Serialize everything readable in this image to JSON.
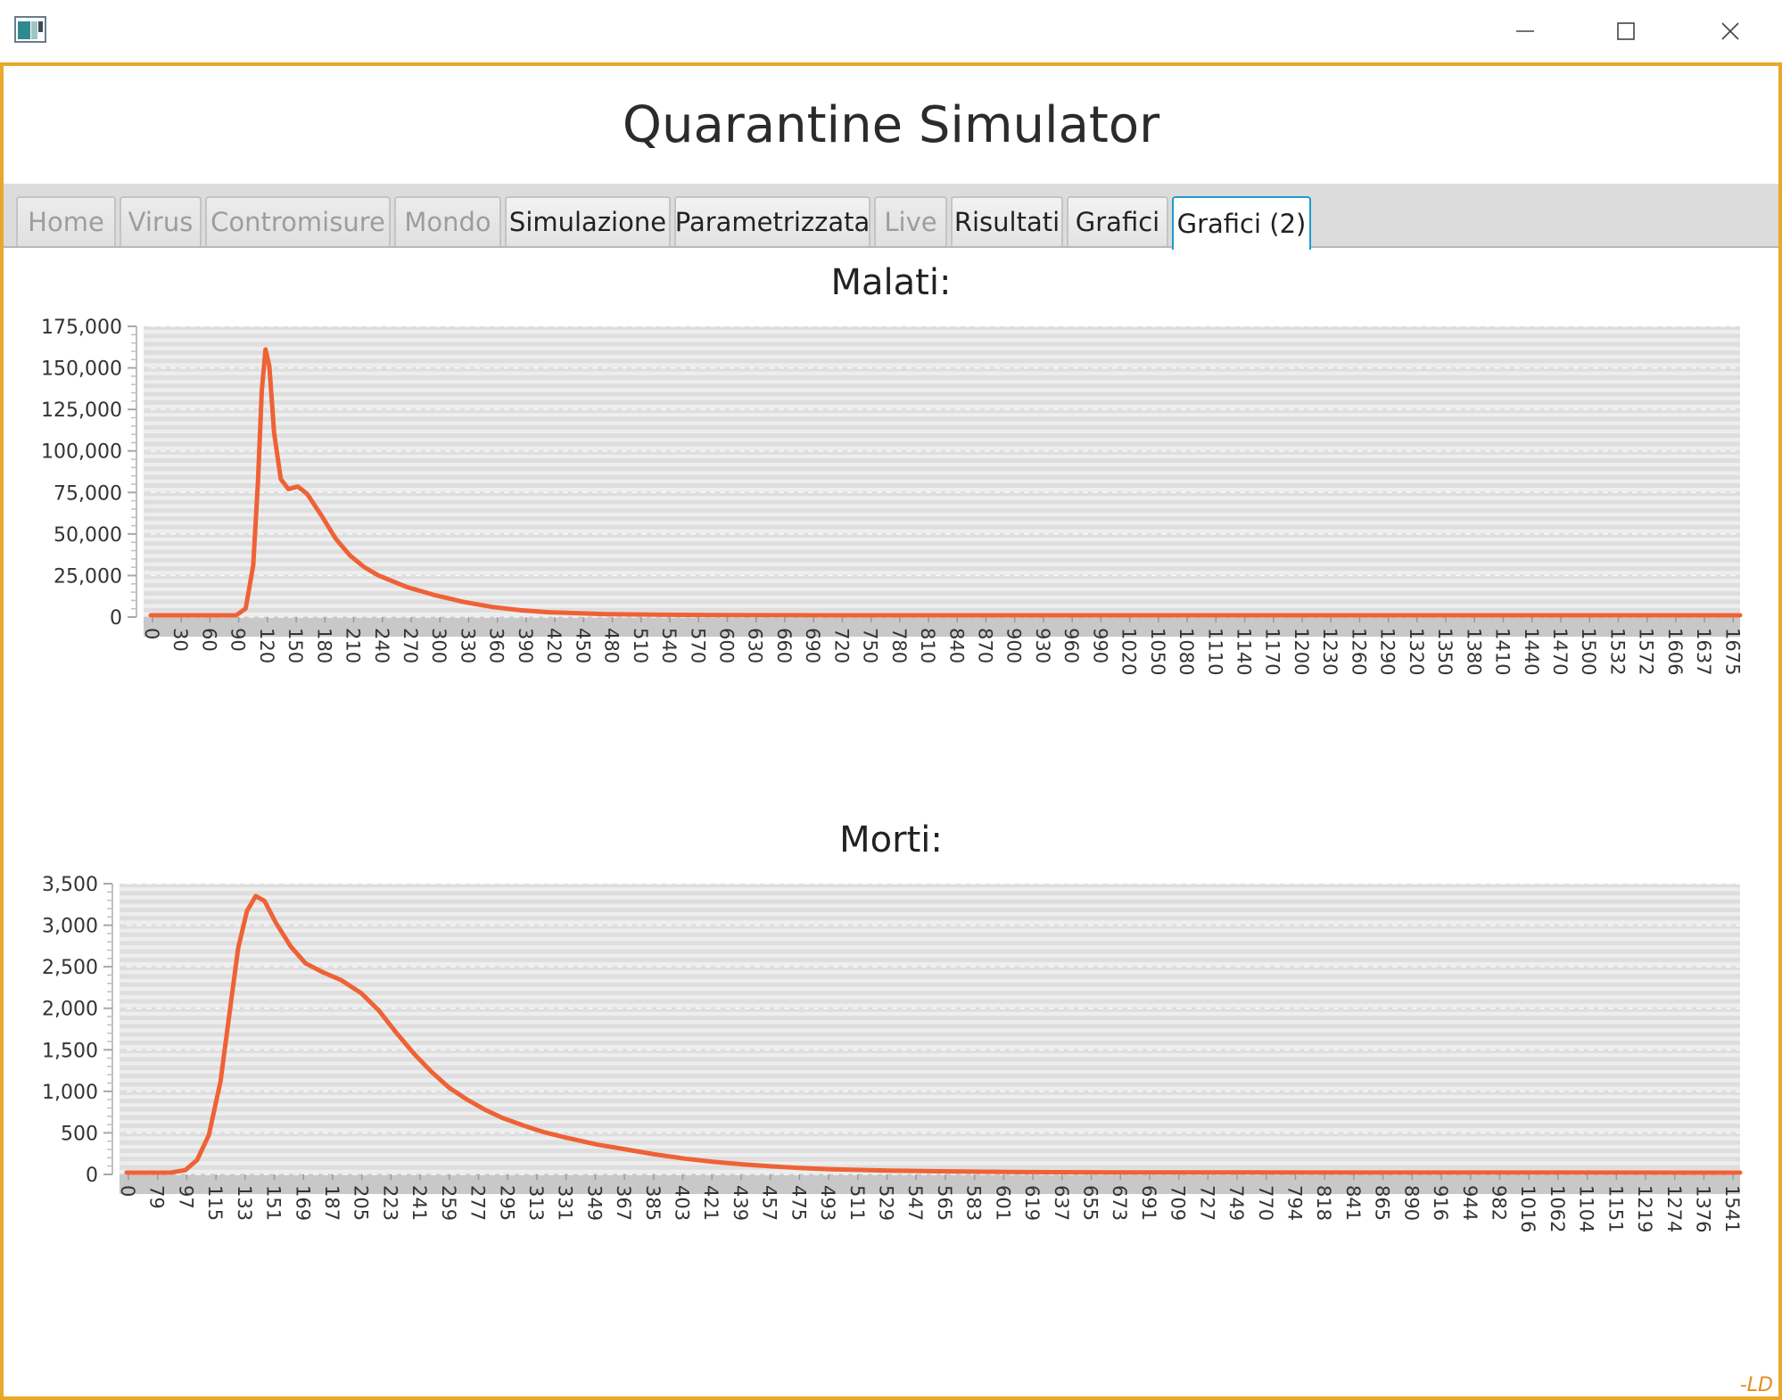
{
  "window": {
    "icon": "app-window-icon",
    "controls": [
      "minimize-icon",
      "maximize-icon",
      "close-icon"
    ]
  },
  "app": {
    "title": "Quarantine Simulator"
  },
  "tabs": [
    {
      "label": "Home",
      "state": "disabled"
    },
    {
      "label": "Virus",
      "state": "disabled"
    },
    {
      "label": "Contromisure",
      "state": "disabled"
    },
    {
      "label": "Mondo",
      "state": "disabled"
    },
    {
      "label": "Simulazione",
      "state": "enabled"
    },
    {
      "label": "Parametrizzata",
      "state": "enabled"
    },
    {
      "label": "Live",
      "state": "disabled"
    },
    {
      "label": "Risultati",
      "state": "enabled"
    },
    {
      "label": "Grafici",
      "state": "enabled"
    },
    {
      "label": "Grafici (2)",
      "state": "active"
    }
  ],
  "colors": {
    "accent_frame": "#e8a92a",
    "series": "#ee6236",
    "active_tab": "#1e9bd0"
  },
  "chart_data": [
    {
      "type": "line",
      "title": "Malati:",
      "ylim": [
        0,
        175000
      ],
      "y_ticks": [
        "0",
        "25,000",
        "50,000",
        "75,000",
        "100,000",
        "125,000",
        "150,000",
        "175,000"
      ],
      "y_tick_values": [
        0,
        25000,
        50000,
        75000,
        100000,
        125000,
        150000,
        175000
      ],
      "x_tick_labels": [
        "0",
        "30",
        "60",
        "90",
        "120",
        "150",
        "180",
        "210",
        "240",
        "270",
        "300",
        "330",
        "360",
        "390",
        "420",
        "450",
        "480",
        "510",
        "540",
        "570",
        "600",
        "630",
        "660",
        "690",
        "720",
        "750",
        "780",
        "810",
        "840",
        "870",
        "900",
        "930",
        "960",
        "990",
        "1020",
        "1050",
        "1080",
        "1110",
        "1140",
        "1170",
        "1200",
        "1230",
        "1260",
        "1290",
        "1320",
        "1350",
        "1380",
        "1410",
        "1440",
        "1470",
        "1500",
        "1532",
        "1572",
        "1606",
        "1637",
        "1675"
      ],
      "series": [
        {
          "values": [
            {
              "x": 0,
              "y": 0
            },
            {
              "x": 60,
              "y": 0
            },
            {
              "x": 90,
              "y": 0
            },
            {
              "x": 100,
              "y": 4000
            },
            {
              "x": 108,
              "y": 30000
            },
            {
              "x": 113,
              "y": 80000
            },
            {
              "x": 117,
              "y": 135000
            },
            {
              "x": 121,
              "y": 160000
            },
            {
              "x": 125,
              "y": 150000
            },
            {
              "x": 130,
              "y": 110000
            },
            {
              "x": 137,
              "y": 82000
            },
            {
              "x": 145,
              "y": 76000
            },
            {
              "x": 155,
              "y": 77500
            },
            {
              "x": 165,
              "y": 73000
            },
            {
              "x": 180,
              "y": 60000
            },
            {
              "x": 195,
              "y": 46000
            },
            {
              "x": 210,
              "y": 36000
            },
            {
              "x": 225,
              "y": 29000
            },
            {
              "x": 240,
              "y": 24000
            },
            {
              "x": 270,
              "y": 17000
            },
            {
              "x": 300,
              "y": 12000
            },
            {
              "x": 330,
              "y": 8000
            },
            {
              "x": 360,
              "y": 5000
            },
            {
              "x": 390,
              "y": 3000
            },
            {
              "x": 420,
              "y": 1800
            },
            {
              "x": 480,
              "y": 700
            },
            {
              "x": 540,
              "y": 300
            },
            {
              "x": 600,
              "y": 100
            },
            {
              "x": 720,
              "y": 0
            },
            {
              "x": 1675,
              "y": 0
            }
          ]
        }
      ]
    },
    {
      "type": "line",
      "title": "Morti:",
      "ylim": [
        0,
        3500
      ],
      "y_ticks": [
        "0",
        "500",
        "1,000",
        "1,500",
        "2,000",
        "2,500",
        "3,000",
        "3,500"
      ],
      "y_tick_values": [
        0,
        500,
        1000,
        1500,
        2000,
        2500,
        3000,
        3500
      ],
      "x_tick_labels": [
        "0",
        "79",
        "97",
        "115",
        "133",
        "151",
        "169",
        "187",
        "205",
        "223",
        "241",
        "259",
        "277",
        "295",
        "313",
        "331",
        "349",
        "367",
        "385",
        "403",
        "421",
        "439",
        "457",
        "475",
        "493",
        "511",
        "529",
        "547",
        "565",
        "583",
        "601",
        "619",
        "637",
        "655",
        "673",
        "691",
        "709",
        "727",
        "749",
        "770",
        "794",
        "818",
        "841",
        "865",
        "890",
        "916",
        "944",
        "982",
        "1016",
        "1062",
        "1104",
        "1151",
        "1219",
        "1274",
        "1376",
        "1541"
      ],
      "series": [
        {
          "values": [
            {
              "x": 0,
              "y": 0
            },
            {
              "x": 1.5,
              "y": 0
            },
            {
              "x": 2,
              "y": 30
            },
            {
              "x": 2.4,
              "y": 150
            },
            {
              "x": 2.8,
              "y": 450
            },
            {
              "x": 3.2,
              "y": 1100
            },
            {
              "x": 3.5,
              "y": 1900
            },
            {
              "x": 3.8,
              "y": 2700
            },
            {
              "x": 4.1,
              "y": 3150
            },
            {
              "x": 4.4,
              "y": 3330
            },
            {
              "x": 4.7,
              "y": 3270
            },
            {
              "x": 5.1,
              "y": 3000
            },
            {
              "x": 5.6,
              "y": 2720
            },
            {
              "x": 6.1,
              "y": 2520
            },
            {
              "x": 6.7,
              "y": 2410
            },
            {
              "x": 7.3,
              "y": 2320
            },
            {
              "x": 8,
              "y": 2160
            },
            {
              "x": 8.6,
              "y": 1950
            },
            {
              "x": 9.2,
              "y": 1680
            },
            {
              "x": 9.8,
              "y": 1430
            },
            {
              "x": 10.4,
              "y": 1210
            },
            {
              "x": 11,
              "y": 1020
            },
            {
              "x": 11.6,
              "y": 880
            },
            {
              "x": 12.2,
              "y": 760
            },
            {
              "x": 12.8,
              "y": 660
            },
            {
              "x": 13.5,
              "y": 570
            },
            {
              "x": 14.2,
              "y": 490
            },
            {
              "x": 15,
              "y": 420
            },
            {
              "x": 16,
              "y": 340
            },
            {
              "x": 17,
              "y": 280
            },
            {
              "x": 18,
              "y": 220
            },
            {
              "x": 19,
              "y": 170
            },
            {
              "x": 20,
              "y": 130
            },
            {
              "x": 21,
              "y": 100
            },
            {
              "x": 22,
              "y": 75
            },
            {
              "x": 23,
              "y": 55
            },
            {
              "x": 24,
              "y": 40
            },
            {
              "x": 26,
              "y": 25
            },
            {
              "x": 28,
              "y": 15
            },
            {
              "x": 30,
              "y": 8
            },
            {
              "x": 34,
              "y": 3
            },
            {
              "x": 55,
              "y": 0
            }
          ]
        }
      ]
    }
  ],
  "signature": "-LD"
}
